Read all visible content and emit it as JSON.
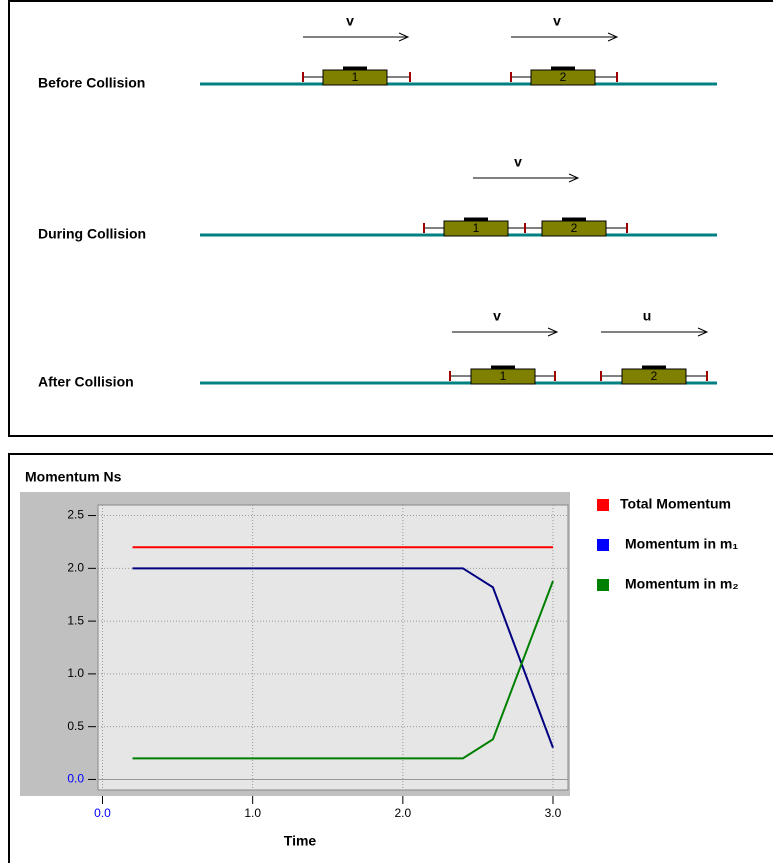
{
  "diagram": {
    "rows": [
      {
        "label": "Before Collision",
        "carts": [
          "1",
          "2"
        ],
        "arrows": [
          "v",
          "v"
        ]
      },
      {
        "label": "During Collision",
        "carts": [
          "1",
          "2"
        ],
        "arrows": [
          "v"
        ]
      },
      {
        "label": "After Collision",
        "carts": [
          "1",
          "2"
        ],
        "arrows": [
          "v",
          "u"
        ]
      }
    ]
  },
  "chart_data": {
    "type": "line",
    "title": "Momentum Ns",
    "x_label": "Time",
    "x": [
      0.2,
      2.4,
      2.6,
      3.0
    ],
    "series": [
      {
        "name": "Total Momentum",
        "color": "#ff0000",
        "values": [
          2.2,
          2.2,
          2.2,
          2.2
        ]
      },
      {
        "name": "Momentum in m₁",
        "color": "#000080",
        "values": [
          2.0,
          2.0,
          1.82,
          0.3
        ]
      },
      {
        "name": "Momentum in m₂",
        "color": "#008000",
        "values": [
          0.2,
          0.2,
          0.38,
          1.88
        ]
      }
    ],
    "legend_colors": [
      "#ff0000",
      "#0000ff",
      "#008000"
    ],
    "xlim": [
      -0.03,
      3.1
    ],
    "ylim": [
      -0.1,
      2.6
    ],
    "xticks": [
      {
        "value": 0,
        "label": "0.0"
      },
      {
        "value": 1,
        "label": "1.0"
      },
      {
        "value": 2,
        "label": "2.0"
      },
      {
        "value": 3,
        "label": "3.0"
      }
    ],
    "yticks": [
      {
        "value": 0,
        "label": "0.0"
      },
      {
        "value": 0.5,
        "label": "0.5"
      },
      {
        "value": 1,
        "label": "1.0"
      },
      {
        "value": 1.5,
        "label": "1.5"
      },
      {
        "value": 2,
        "label": "2.0"
      },
      {
        "value": 2.5,
        "label": "2.5"
      }
    ],
    "grid": true
  }
}
